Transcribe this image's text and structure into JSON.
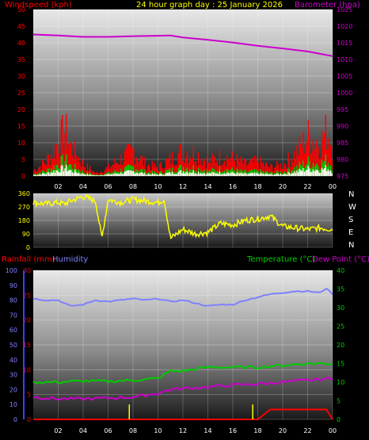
{
  "header": {
    "windspeed_label": "Windspeed (kph)",
    "title": "24 hour graph day : 25 January 2026",
    "barometer_label": "Barometer (hpa)"
  },
  "footer_labels": {
    "rainfall": "Rainfall (mm)",
    "humidity": "Humidity",
    "temperature": "Temperature (°C)",
    "dewpoint": "Dew Point (°C)"
  },
  "direction_labels": [
    "N",
    "W",
    "S",
    "E",
    "N"
  ],
  "colors": {
    "wind": "#ff0000",
    "gust": "#00cc00",
    "wind_white": "#ffffff",
    "barometer": "#cc00cc",
    "direction": "#ffff00",
    "humidity": "#8080ff",
    "temperature": "#00cc00",
    "dewpoint": "#cc00cc",
    "rain": "#ff0000",
    "rain_rate": "#ffff00"
  },
  "chart_data": [
    {
      "type": "line",
      "name": "wind-barometer",
      "x_ticks": [
        "02",
        "04",
        "06",
        "08",
        "10",
        "12",
        "14",
        "16",
        "18",
        "20",
        "22",
        "00"
      ],
      "left_axis": {
        "label": "Windspeed (kph)",
        "ylim": [
          0,
          50
        ],
        "ticks": [
          0,
          5,
          10,
          15,
          20,
          25,
          30,
          35,
          40,
          45,
          50
        ]
      },
      "right_axis": {
        "label": "Barometer (hpa)",
        "ylim": [
          975,
          1025
        ],
        "ticks": [
          975,
          980,
          985,
          990,
          995,
          1000,
          1005,
          1010,
          1015,
          1020,
          1025
        ]
      },
      "series": [
        {
          "name": "Barometer (hpa)",
          "axis": "right",
          "x": [
            0,
            2,
            4,
            6,
            8,
            10,
            11,
            12,
            14,
            16,
            18,
            20,
            22,
            23,
            24
          ],
          "values": [
            1017.5,
            1017.2,
            1016.8,
            1016.8,
            1017.0,
            1017.1,
            1017.2,
            1016.6,
            1015.9,
            1015.1,
            1014.1,
            1013.3,
            1012.4,
            1011.7,
            1011.0
          ]
        },
        {
          "name": "Windspeed (kph)",
          "axis": "left",
          "x": [
            0,
            1,
            2,
            2.5,
            3,
            4,
            5,
            6,
            7,
            8,
            9,
            10,
            11,
            12,
            13,
            14,
            15,
            16,
            17,
            18,
            19,
            20,
            21,
            22,
            23,
            23.5,
            24
          ],
          "values": [
            2,
            5,
            12,
            16,
            10,
            4,
            1,
            3,
            6,
            9,
            4,
            3,
            6,
            9,
            8,
            5,
            7,
            6,
            4,
            5,
            3,
            4,
            8,
            14,
            12,
            16,
            10
          ]
        }
      ]
    },
    {
      "type": "scatter",
      "name": "wind-direction",
      "x_ticks": [],
      "ylim": [
        0,
        360
      ],
      "y_ticks": [
        0,
        90,
        180,
        270,
        360
      ],
      "series": [
        {
          "name": "Wind direction",
          "x": [
            0,
            1,
            2,
            2.5,
            3,
            4,
            5,
            5.5,
            6,
            7,
            8,
            9,
            10,
            10.5,
            11,
            12,
            13,
            14,
            15,
            16,
            17,
            18,
            19,
            20,
            21,
            22,
            23,
            24
          ],
          "values": [
            300,
            290,
            300,
            290,
            310,
            340,
            310,
            60,
            320,
            300,
            320,
            310,
            300,
            320,
            60,
            120,
            90,
            100,
            160,
            150,
            180,
            190,
            210,
            140,
            130,
            120,
            130,
            120
          ]
        }
      ]
    },
    {
      "type": "line",
      "name": "temperature-humidity",
      "x_ticks": [
        "02",
        "04",
        "06",
        "08",
        "10",
        "12",
        "14",
        "16",
        "18",
        "20",
        "22",
        "00"
      ],
      "left_axis_humidity": {
        "label": "Humidity",
        "ylim": [
          0,
          100
        ],
        "ticks": [
          0,
          10,
          20,
          30,
          40,
          50,
          60,
          70,
          80,
          90,
          100
        ]
      },
      "left_axis_rain": {
        "label": "Rainfall (mm)",
        "ylim": [
          0,
          30
        ],
        "ticks": [
          0,
          5,
          10,
          15,
          20,
          25,
          30
        ]
      },
      "right_axis": {
        "label": "Temperature (°C)",
        "ylim": [
          0,
          40
        ],
        "ticks": [
          0,
          5,
          10,
          15,
          20,
          25,
          30,
          35,
          40
        ]
      },
      "series": [
        {
          "name": "Humidity",
          "axis": "humidity",
          "x": [
            0,
            1,
            2,
            3,
            4,
            5,
            6,
            7,
            8,
            9,
            10,
            11,
            12,
            13,
            14,
            15,
            16,
            17,
            18,
            19,
            20,
            21,
            22,
            23,
            23.5,
            24
          ],
          "values": [
            81,
            80,
            80,
            76,
            77,
            80,
            79,
            80,
            81,
            80,
            81,
            79,
            80,
            78,
            76,
            77,
            77,
            80,
            82,
            84,
            85,
            86,
            86,
            85,
            88,
            84
          ]
        },
        {
          "name": "Temperature (°C)",
          "axis": "right",
          "x": [
            0,
            2,
            4,
            6,
            8,
            10,
            11,
            12,
            14,
            16,
            18,
            20,
            22,
            24
          ],
          "values": [
            10,
            10,
            10.3,
            10.2,
            10.5,
            11,
            13,
            13,
            14,
            14,
            14,
            14.5,
            15,
            15
          ]
        },
        {
          "name": "Dew Point (°C)",
          "axis": "right",
          "x": [
            0,
            2,
            4,
            6,
            8,
            10,
            11,
            12,
            14,
            16,
            18,
            20,
            22,
            24
          ],
          "values": [
            6,
            5.5,
            5.5,
            5.7,
            6,
            7,
            8,
            8.3,
            8.7,
            9.2,
            9.5,
            10,
            10.5,
            11
          ]
        },
        {
          "name": "Rainfall (mm)",
          "axis": "rain",
          "x": [
            0,
            16,
            18,
            18.5,
            19,
            21,
            23.5,
            24
          ],
          "values": [
            0,
            0,
            0,
            1,
            2,
            2,
            2,
            0
          ]
        }
      ]
    }
  ]
}
